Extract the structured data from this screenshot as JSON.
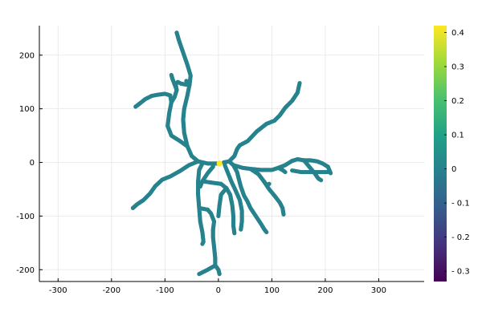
{
  "chart_data": {
    "type": "scatter",
    "title": "",
    "xlabel": "",
    "ylabel": "",
    "xlim": [
      -335,
      385
    ],
    "ylim": [
      -222,
      255
    ],
    "x_ticks": [
      -300,
      -200,
      -100,
      0,
      100,
      200,
      300
    ],
    "x_tick_labels": [
      "-300",
      "-200",
      "-100",
      "0",
      "100",
      "200",
      "300"
    ],
    "y_ticks": [
      -200,
      -100,
      0,
      100,
      200
    ],
    "y_tick_labels": [
      "-200",
      "-100",
      "0",
      "100",
      "200"
    ],
    "grid": true,
    "legend": "none",
    "colorbar": {
      "colormap": "viridis",
      "range": [
        -0.33,
        0.42
      ],
      "ticks": [
        -0.3,
        -0.2,
        -0.1,
        0,
        0.1,
        0.2,
        0.3,
        0.4
      ],
      "tick_labels": [
        "- 0.3",
        "- 0.2",
        "- 0.1",
        "0",
        "0.1",
        "0.2",
        "0.3",
        "0.4"
      ],
      "colors": [
        "#440154",
        "#46327e",
        "#365c8d",
        "#277f8e",
        "#1fa187",
        "#4ac16d",
        "#a0da39",
        "#fde725"
      ]
    },
    "branch_color_value": 0.0,
    "soma": {
      "x": 2,
      "y": -2,
      "value": 0.42
    },
    "branches": [
      {
        "points": [
          [
            0,
            -2
          ],
          [
            -20,
            -2
          ],
          [
            -38,
            2
          ],
          [
            -50,
            12
          ],
          [
            -58,
            30
          ],
          [
            -64,
            55
          ],
          [
            -66,
            80
          ],
          [
            -64,
            100
          ],
          [
            -58,
            125
          ],
          [
            -54,
            145
          ],
          [
            -52,
            162
          ],
          [
            -58,
            182
          ],
          [
            -66,
            205
          ],
          [
            -74,
            228
          ],
          [
            -78,
            242
          ]
        ]
      },
      {
        "points": [
          [
            -54,
            145
          ],
          [
            -60,
            152
          ]
        ]
      },
      {
        "points": [
          [
            -58,
            30
          ],
          [
            -72,
            40
          ],
          [
            -88,
            50
          ],
          [
            -95,
            68
          ],
          [
            -92,
            92
          ],
          [
            -88,
            112
          ],
          [
            -90,
            125
          ],
          [
            -100,
            128
          ],
          [
            -115,
            126
          ],
          [
            -125,
            124
          ],
          [
            -137,
            118
          ],
          [
            -147,
            110
          ],
          [
            -155,
            104
          ]
        ]
      },
      {
        "points": [
          [
            -88,
            112
          ],
          [
            -82,
            122
          ],
          [
            -78,
            135
          ],
          [
            -80,
            146
          ],
          [
            -76,
            150
          ],
          [
            -70,
            147
          ],
          [
            -60,
            145
          ]
        ]
      },
      {
        "points": [
          [
            -78,
            135
          ],
          [
            -86,
            156
          ],
          [
            -88,
            163
          ]
        ]
      },
      {
        "points": [
          [
            -38,
            2
          ],
          [
            -55,
            -5
          ],
          [
            -72,
            -16
          ],
          [
            -90,
            -26
          ],
          [
            -105,
            -32
          ],
          [
            -118,
            -44
          ],
          [
            -128,
            -58
          ],
          [
            -140,
            -70
          ],
          [
            -152,
            -78
          ],
          [
            -160,
            -85
          ]
        ]
      },
      {
        "points": [
          [
            -30,
            -2
          ],
          [
            -36,
            -14
          ],
          [
            -38,
            -35
          ],
          [
            -38,
            -60
          ],
          [
            -36,
            -85
          ],
          [
            -34,
            -110
          ],
          [
            -30,
            -130
          ],
          [
            -28,
            -148
          ],
          [
            -30,
            -152
          ]
        ]
      },
      {
        "points": [
          [
            -36,
            -85
          ],
          [
            -20,
            -88
          ],
          [
            -14,
            -95
          ],
          [
            -8,
            -110
          ],
          [
            -10,
            -125
          ],
          [
            -10,
            -140
          ],
          [
            -8,
            -158
          ],
          [
            -6,
            -178
          ],
          [
            -6,
            -192
          ]
        ]
      },
      {
        "points": [
          [
            -6,
            -192
          ],
          [
            -20,
            -200
          ],
          [
            -30,
            -205
          ],
          [
            -36,
            -208
          ]
        ]
      },
      {
        "points": [
          [
            -6,
            -192
          ],
          [
            0,
            -200
          ],
          [
            2,
            -208
          ]
        ]
      },
      {
        "points": [
          [
            -10,
            -8
          ],
          [
            -20,
            -20
          ],
          [
            -30,
            -35
          ],
          [
            -34,
            -45
          ]
        ]
      },
      {
        "points": [
          [
            -30,
            -35
          ],
          [
            -10,
            -38
          ],
          [
            5,
            -40
          ],
          [
            15,
            -48
          ],
          [
            22,
            -60
          ],
          [
            26,
            -80
          ],
          [
            28,
            -100
          ],
          [
            28,
            -118
          ],
          [
            30,
            -132
          ]
        ]
      },
      {
        "points": [
          [
            15,
            -48
          ],
          [
            5,
            -60
          ],
          [
            2,
            -80
          ],
          [
            0,
            -100
          ]
        ]
      },
      {
        "points": [
          [
            12,
            -5
          ],
          [
            18,
            -20
          ],
          [
            24,
            -35
          ],
          [
            32,
            -52
          ],
          [
            40,
            -70
          ],
          [
            44,
            -90
          ],
          [
            44,
            -110
          ],
          [
            42,
            -125
          ]
        ]
      },
      {
        "points": [
          [
            10,
            0
          ],
          [
            20,
            2
          ],
          [
            28,
            -5
          ],
          [
            35,
            -18
          ],
          [
            38,
            -30
          ],
          [
            42,
            -45
          ],
          [
            48,
            -62
          ],
          [
            54,
            -72
          ],
          [
            60,
            -85
          ],
          [
            70,
            -100
          ],
          [
            80,
            -115
          ],
          [
            86,
            -125
          ],
          [
            90,
            -130
          ]
        ]
      },
      {
        "points": [
          [
            20,
            2
          ],
          [
            30,
            12
          ],
          [
            35,
            25
          ],
          [
            40,
            32
          ],
          [
            55,
            40
          ],
          [
            72,
            58
          ],
          [
            90,
            72
          ],
          [
            105,
            78
          ],
          [
            115,
            88
          ],
          [
            125,
            102
          ],
          [
            138,
            115
          ],
          [
            148,
            130
          ],
          [
            152,
            148
          ]
        ]
      },
      {
        "points": [
          [
            28,
            -5
          ],
          [
            45,
            -10
          ],
          [
            60,
            -12
          ],
          [
            80,
            -14
          ],
          [
            100,
            -14
          ],
          [
            112,
            -10
          ],
          [
            125,
            -5
          ],
          [
            138,
            3
          ],
          [
            148,
            6
          ],
          [
            160,
            4
          ],
          [
            172,
            4
          ],
          [
            185,
            2
          ],
          [
            195,
            -2
          ],
          [
            205,
            -8
          ],
          [
            210,
            -20
          ]
        ]
      },
      {
        "points": [
          [
            60,
            -12
          ],
          [
            75,
            -22
          ],
          [
            85,
            -35
          ],
          [
            95,
            -50
          ],
          [
            105,
            -62
          ],
          [
            115,
            -75
          ],
          [
            120,
            -85
          ],
          [
            122,
            -97
          ]
        ]
      },
      {
        "points": [
          [
            85,
            -35
          ],
          [
            90,
            -42
          ],
          [
            95,
            -40
          ]
        ]
      },
      {
        "points": [
          [
            112,
            -10
          ],
          [
            120,
            -14
          ],
          [
            125,
            -18
          ]
        ]
      },
      {
        "points": [
          [
            160,
            4
          ],
          [
            170,
            -8
          ],
          [
            180,
            -20
          ],
          [
            187,
            -30
          ],
          [
            192,
            -33
          ]
        ]
      },
      {
        "points": [
          [
            138,
            -15
          ],
          [
            155,
            -18
          ],
          [
            170,
            -18
          ],
          [
            185,
            -18
          ],
          [
            198,
            -18
          ],
          [
            205,
            -18
          ]
        ]
      }
    ]
  }
}
